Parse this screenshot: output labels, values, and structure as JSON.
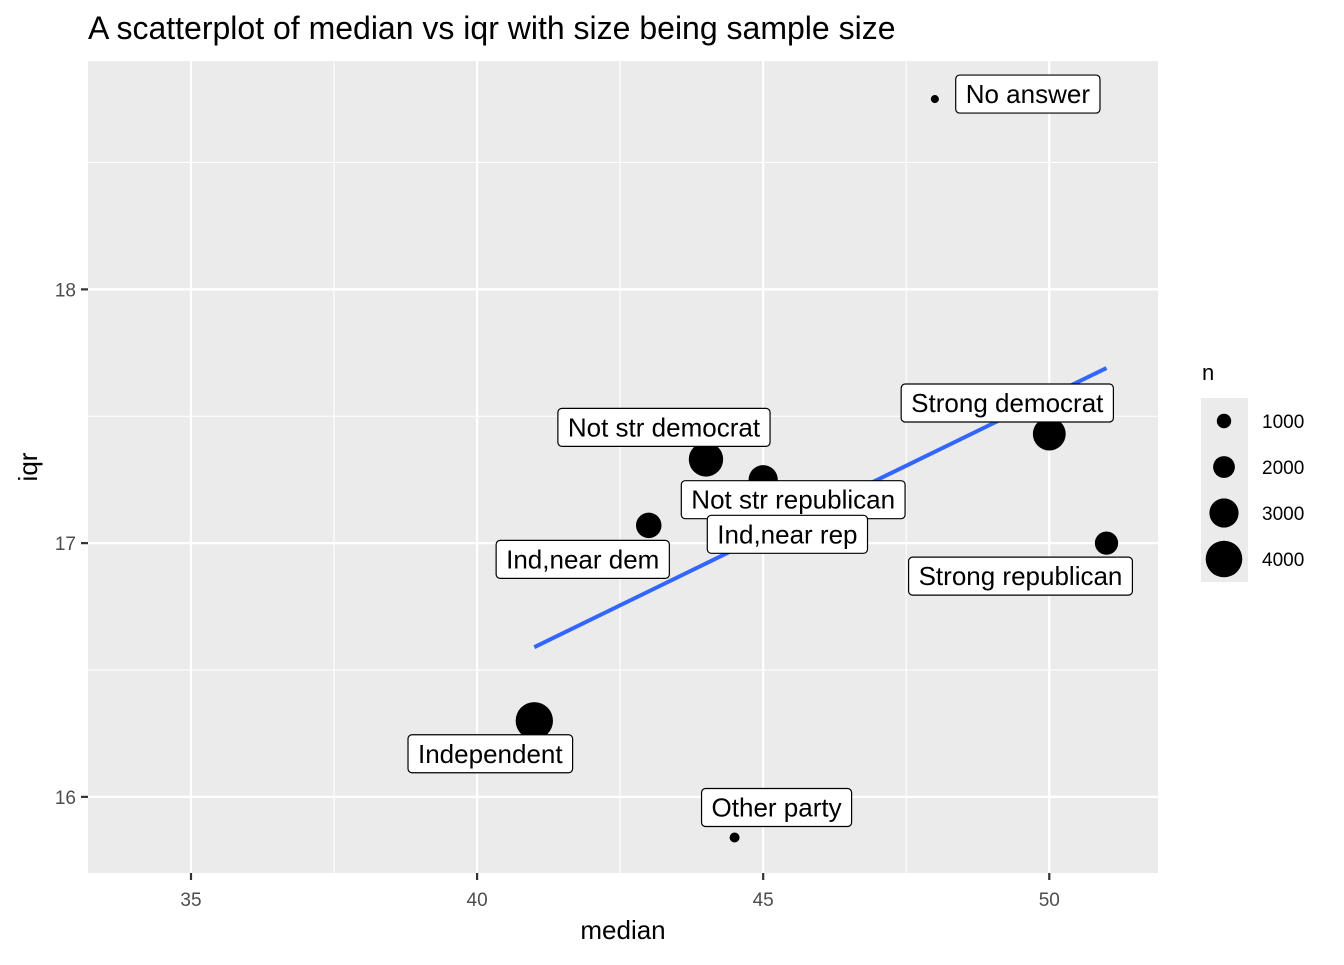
{
  "chart_data": {
    "type": "scatter",
    "title": "A scatterplot of median vs iqr with size being sample size",
    "xlabel": "median",
    "ylabel": "iqr",
    "xlim": [
      33.2,
      51.9
    ],
    "ylim": [
      15.7,
      18.9
    ],
    "x_ticks": [
      35,
      40,
      45,
      50
    ],
    "y_ticks": [
      16,
      17,
      18
    ],
    "grid": true,
    "legend": {
      "title": "n",
      "position": "right",
      "entries": [
        {
          "label": "1000",
          "value": 1000
        },
        {
          "label": "2000",
          "value": 2000
        },
        {
          "label": "3000",
          "value": 3000
        },
        {
          "label": "4000",
          "value": 4000
        }
      ]
    },
    "points": [
      {
        "label": "No answer",
        "x": 48,
        "y": 18.75,
        "n": 150
      },
      {
        "label": "Strong democrat",
        "x": 50,
        "y": 17.43,
        "n": 3500
      },
      {
        "label": "Not str democrat",
        "x": 44,
        "y": 17.33,
        "n": 3700
      },
      {
        "label": "Not str republican",
        "x": 45,
        "y": 17.25,
        "n": 3000
      },
      {
        "label": "Ind,near dem",
        "x": 43,
        "y": 17.07,
        "n": 2500
      },
      {
        "label": "Ind,near rep",
        "x": 46,
        "y": 17.09,
        "n": 1800
      },
      {
        "label": "Strong republican",
        "x": 51,
        "y": 17.0,
        "n": 2200
      },
      {
        "label": "Independent",
        "x": 41,
        "y": 16.3,
        "n": 4100
      },
      {
        "label": "Other party",
        "x": 44.5,
        "y": 15.84,
        "n": 400
      }
    ],
    "trend_line": {
      "x": [
        41,
        51
      ],
      "y": [
        16.59,
        17.69
      ],
      "color": "#3366ff"
    },
    "colors": {
      "panel_bg": "#ebebeb",
      "grid": "#ffffff",
      "points": "#000000",
      "trend": "#3366ff"
    }
  }
}
